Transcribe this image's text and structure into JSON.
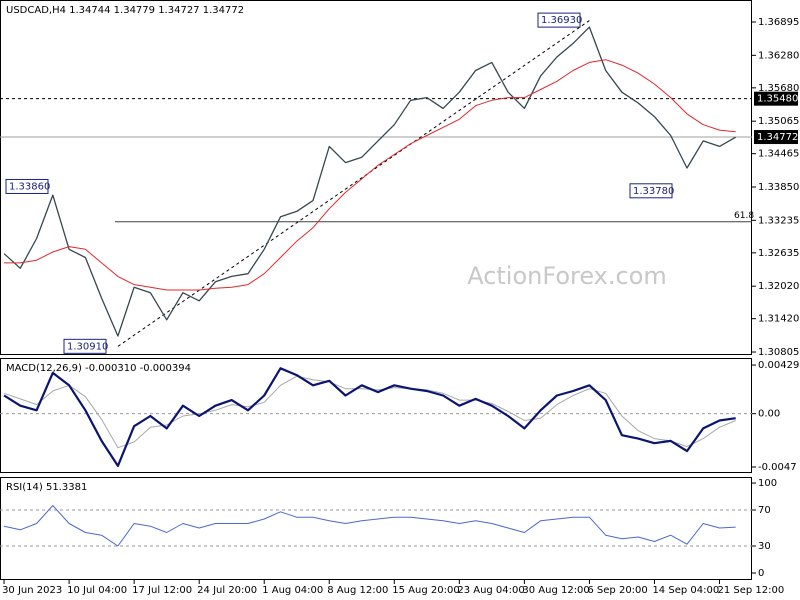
{
  "chart_data": [
    {
      "type": "line",
      "title": "USDCAD,H4  1.34744 1.34779 1.34727 1.34772",
      "watermark": "ActionForex.com",
      "x": [
        0,
        8,
        16,
        24,
        32,
        40,
        48,
        56,
        64,
        72,
        80,
        88,
        96,
        104,
        112,
        120,
        128,
        136,
        144,
        152,
        160,
        168,
        176,
        184,
        192,
        200,
        208,
        216,
        224,
        232,
        240,
        248,
        256,
        264,
        272,
        280,
        288,
        296,
        304,
        312,
        320,
        328,
        336,
        344,
        352,
        360
      ],
      "xlim": [
        -2,
        368
      ],
      "series": [
        {
          "color": "#37474f",
          "values": [
            1.3262,
            1.3235,
            1.329,
            1.337,
            1.327,
            1.3255,
            1.318,
            1.311,
            1.32,
            1.319,
            1.314,
            1.319,
            1.3175,
            1.321,
            1.322,
            1.3225,
            1.327,
            1.333,
            1.334,
            1.336,
            1.346,
            1.343,
            1.344,
            1.347,
            1.35,
            1.3545,
            1.355,
            1.353,
            1.356,
            1.36,
            1.3615,
            1.356,
            1.353,
            1.359,
            1.3625,
            1.365,
            1.368,
            1.36,
            1.356,
            1.354,
            1.3515,
            1.348,
            1.342,
            1.347,
            1.346,
            1.3477
          ]
        },
        {
          "color": "#e0282e",
          "values": [
            1.3245,
            1.3245,
            1.325,
            1.3265,
            1.3275,
            1.327,
            1.3245,
            1.322,
            1.3205,
            1.32,
            1.3195,
            1.3195,
            1.3195,
            1.3198,
            1.32,
            1.3205,
            1.3225,
            1.3255,
            1.3285,
            1.331,
            1.3345,
            1.3375,
            1.34,
            1.3425,
            1.3445,
            1.3465,
            1.348,
            1.3495,
            1.351,
            1.3535,
            1.3545,
            1.355,
            1.355,
            1.3565,
            1.358,
            1.36,
            1.3615,
            1.362,
            1.361,
            1.3595,
            1.3575,
            1.355,
            1.352,
            1.35,
            1.349,
            1.3487
          ]
        }
      ],
      "ylim": [
        1.3075,
        1.37301
      ],
      "yticks": [
        {
          "value": 1.36895,
          "label": "1.36895"
        },
        {
          "value": 1.3628,
          "label": "1.36280"
        },
        {
          "value": 1.3568,
          "label": "1.35680"
        },
        {
          "value": 1.35065,
          "label": "1.35065"
        },
        {
          "value": 1.34465,
          "label": "1.34465"
        },
        {
          "value": 1.3385,
          "label": "1.33850"
        },
        {
          "value": 1.33235,
          "label": "1.33235"
        },
        {
          "value": 1.32635,
          "label": "1.32635"
        },
        {
          "value": 1.3202,
          "label": "1.32020"
        },
        {
          "value": 1.3142,
          "label": "1.31420"
        },
        {
          "value": 1.30805,
          "label": "1.30805"
        }
      ],
      "annotations": [
        {
          "value": 1.3693,
          "label": "1.36930"
        },
        {
          "value": 1.3386,
          "label": "1.33860"
        },
        {
          "value": 1.3091,
          "label": "1.30910"
        },
        {
          "value": 1.3378,
          "label": "1.33780"
        }
      ],
      "level": {
        "value": 1.3548,
        "label": "1.35480"
      },
      "last": {
        "value": 1.34772,
        "label": "1.34772"
      },
      "fibo": {
        "ratio": 61.8,
        "price": 1.3321
      }
    },
    {
      "type": "line",
      "title": "MACD(12,26,9) -0.000310 -0.000394",
      "x": [
        0,
        8,
        16,
        24,
        32,
        40,
        48,
        56,
        64,
        72,
        80,
        88,
        96,
        104,
        112,
        120,
        128,
        136,
        144,
        152,
        160,
        168,
        176,
        184,
        192,
        200,
        208,
        216,
        224,
        232,
        240,
        248,
        256,
        264,
        272,
        280,
        288,
        296,
        304,
        312,
        320,
        328,
        336,
        344,
        352,
        360
      ],
      "xlim": [
        -2,
        368
      ],
      "series": [
        {
          "color": "#a8a8a8",
          "values": [
            0.0018,
            0.0013,
            0.0008,
            0.002,
            0.0025,
            0.0015,
            -0.0005,
            -0.003,
            -0.0025,
            -0.0012,
            -0.001,
            -0.0002,
            0,
            0.0003,
            0.0008,
            0.0006,
            0.001,
            0.0025,
            0.0033,
            0.003,
            0.0028,
            0.0022,
            0.0022,
            0.0021,
            0.0023,
            0.0022,
            0.0021,
            0.0018,
            0.0012,
            0.0012,
            0.0009,
            0.0002,
            -0.0006,
            -0.0004,
            0.0008,
            0.0016,
            0.0022,
            0.0018,
            -0.0002,
            -0.0015,
            -0.0022,
            -0.0024,
            -0.0029,
            -0.0022,
            -0.0012,
            -0.0006
          ]
        },
        {
          "color": "#0b1470",
          "values": [
            0.0016,
            0.0007,
            0.0003,
            0.0036,
            0.0025,
            0.0003,
            -0.0024,
            -0.0046,
            -0.0011,
            -0.0002,
            -0.0013,
            0.0007,
            -0.0002,
            0.0007,
            0.0012,
            0.0003,
            0.0016,
            0.004,
            0.0034,
            0.0025,
            0.0029,
            0.0016,
            0.0025,
            0.0019,
            0.0025,
            0.0022,
            0.002,
            0.0016,
            0.0007,
            0.0013,
            0.0007,
            -0.0002,
            -0.0013,
            0.0003,
            0.0016,
            0.002,
            0.0025,
            0.0012,
            -0.0019,
            -0.0022,
            -0.0026,
            -0.0024,
            -0.0033,
            -0.0013,
            -0.0006,
            -0.0004
          ]
        }
      ],
      "ylim": [
        -0.00523,
        0.00491
      ],
      "yticks": [
        {
          "value": 0.00429,
          "label": "0.00429"
        },
        {
          "value": 0,
          "label": "0.00"
        },
        {
          "value": -0.0047,
          "label": "-0.0047"
        }
      ],
      "zero": 0
    },
    {
      "type": "line",
      "title": "RSI(14) 51.3381",
      "x": [
        0,
        8,
        16,
        24,
        32,
        40,
        48,
        56,
        64,
        72,
        80,
        88,
        96,
        104,
        112,
        120,
        128,
        136,
        144,
        152,
        160,
        168,
        176,
        184,
        192,
        200,
        208,
        216,
        224,
        232,
        240,
        248,
        256,
        264,
        272,
        280,
        288,
        296,
        304,
        312,
        320,
        328,
        336,
        344,
        352,
        360
      ],
      "xlim": [
        -2,
        368
      ],
      "xticks": [
        {
          "value": 0,
          "label": "30 Jun 2023"
        },
        {
          "value": 32,
          "label": "10 Jul 04:00"
        },
        {
          "value": 64,
          "label": "17 Jul 12:00"
        },
        {
          "value": 96,
          "label": "24 Jul 20:00"
        },
        {
          "value": 128,
          "label": "1 Aug 04:00"
        },
        {
          "value": 160,
          "label": "8 Aug 12:00"
        },
        {
          "value": 192,
          "label": "15 Aug 20:00"
        },
        {
          "value": 224,
          "label": "23 Aug 04:00"
        },
        {
          "value": 256,
          "label": "30 Aug 12:00"
        },
        {
          "value": 288,
          "label": "6 Sep 20:00"
        },
        {
          "value": 320,
          "label": "14 Sep 04:00"
        },
        {
          "value": 352,
          "label": "21 Sep 12:00"
        }
      ],
      "series": [
        {
          "color": "#4a68d0",
          "values": [
            52,
            48,
            55,
            75,
            55,
            45,
            42,
            30,
            55,
            52,
            45,
            55,
            50,
            55,
            55,
            55,
            60,
            68,
            62,
            62,
            58,
            55,
            58,
            60,
            62,
            62,
            60,
            58,
            55,
            58,
            55,
            50,
            45,
            58,
            60,
            62,
            62,
            42,
            38,
            40,
            35,
            42,
            32,
            55,
            50,
            51
          ]
        }
      ],
      "ylim": [
        -7.8,
        106.7
      ],
      "yticks": [
        100,
        70,
        30,
        0
      ],
      "dashed_levels": [
        70,
        30
      ]
    }
  ]
}
